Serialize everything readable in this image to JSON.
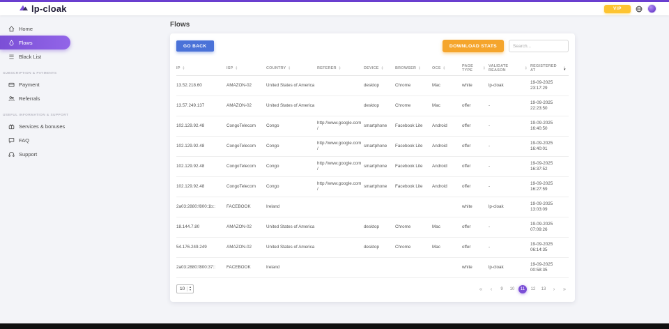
{
  "colors": {
    "accent": "#7b4fd6",
    "accent2": "#9265e8",
    "top-bar": "#6a3fd0",
    "vip": "#fdc431",
    "download": "#f5a52c",
    "go-back": "#4a72d8",
    "footer": "#101010"
  },
  "header": {
    "logo_text": "lp-cloak",
    "vip_label": "VIP"
  },
  "sidebar": {
    "main_items": [
      {
        "label": "Home"
      },
      {
        "label": "Flows"
      },
      {
        "label": "Black List"
      }
    ],
    "sections": [
      {
        "title": "SUBSCRIPTION & PAYMENTS",
        "items": [
          {
            "label": "Payment"
          },
          {
            "label": "Referrals"
          }
        ]
      },
      {
        "title": "USEFUL INFORMATION & SUPPORT",
        "items": [
          {
            "label": "Services & bonuses"
          },
          {
            "label": "FAQ"
          },
          {
            "label": "Support"
          }
        ]
      }
    ]
  },
  "page": {
    "title": "Flows",
    "go_back_label": "GO BACK",
    "download_stats_label": "DOWNLOAD STATS",
    "search_placeholder": "Search..."
  },
  "table": {
    "columns": [
      "IP",
      "ISP",
      "COUNTRY",
      "REFERER",
      "DEVICE",
      "BROWSER",
      "OCS",
      "PAGE TYPE",
      "VALIDATE REASON",
      "REGISTERED AT"
    ],
    "sorted_column": "REGISTERED AT",
    "sort_direction": "desc",
    "rows": [
      [
        "13.52.218.60",
        "AMAZON-02",
        "United States of America",
        "",
        "desktop",
        "Chrome",
        "Mac",
        "white",
        "lp-cloak",
        "19-09-2025 23:17:29"
      ],
      [
        "13.57.249.137",
        "AMAZON-02",
        "United States of America",
        "",
        "desktop",
        "Chrome",
        "Mac",
        "offer",
        "-",
        "19-09-2025 22:23:50"
      ],
      [
        "102.129.92.48",
        "CongoTelecom",
        "Congo",
        "http://www.google.com/",
        "smartphone",
        "Facebook Lite",
        "Android",
        "offer",
        "-",
        "19-09-2025 16:40:50"
      ],
      [
        "102.129.92.48",
        "CongoTelecom",
        "Congo",
        "http://www.google.com/",
        "smartphone",
        "Facebook Lite",
        "Android",
        "offer",
        "-",
        "19-09-2025 16:40:01"
      ],
      [
        "102.129.92.48",
        "CongoTelecom",
        "Congo",
        "http://www.google.com/",
        "smartphone",
        "Facebook Lite",
        "Android",
        "offer",
        "-",
        "19-09-2025 16:37:52"
      ],
      [
        "102.129.92.48",
        "CongoTelecom",
        "Congo",
        "http://www.google.com/",
        "smartphone",
        "Facebook Lite",
        "Android",
        "offer",
        "-",
        "19-09-2025 16:27:59"
      ],
      [
        "2a03:2880:f800:1b::",
        "FACEBOOK",
        "Ireland",
        "",
        "",
        "",
        "",
        "white",
        "lp-cloak",
        "19-09-2025 13:03:09"
      ],
      [
        "18.144.7.80",
        "AMAZON-02",
        "United States of America",
        "",
        "desktop",
        "Chrome",
        "Mac",
        "offer",
        "-",
        "19-09-2025 07:09:26"
      ],
      [
        "54.176.249.249",
        "AMAZON-02",
        "United States of America",
        "",
        "desktop",
        "Chrome",
        "Mac",
        "offer",
        "-",
        "19-09-2025 06:14:35"
      ],
      [
        "2a03:2880:f800:37::",
        "FACEBOOK",
        "Ireland",
        "",
        "",
        "",
        "",
        "white",
        "lp-cloak",
        "19-09-2025 00:58:35"
      ]
    ]
  },
  "pagination": {
    "page_size": "10",
    "first_label": "«",
    "prev_label": "‹",
    "next_label": "›",
    "last_label": "»",
    "pages": [
      "9",
      "10",
      "11",
      "12",
      "13"
    ],
    "active_page": "11"
  }
}
